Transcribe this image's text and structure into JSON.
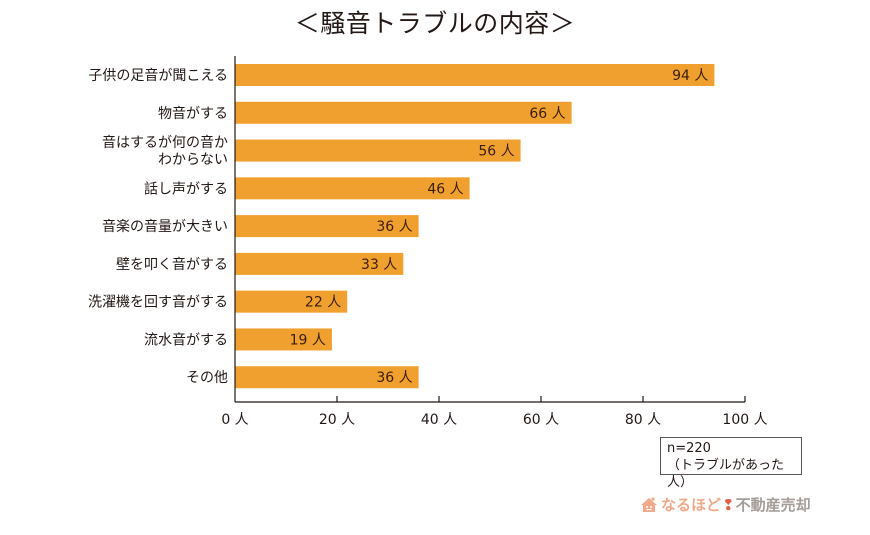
{
  "chart_data": {
    "type": "bar",
    "orientation": "horizontal",
    "title": "＜騒音トラブルの内容＞",
    "categories": [
      "子供の足音が聞こえる",
      "物音がする",
      "音はするが何の音か\nわからない",
      "話し声がする",
      "音楽の音量が大きい",
      "壁を叩く音がする",
      "洗濯機を回す音がする",
      "流水音がする",
      "その他"
    ],
    "values": [
      94,
      66,
      56,
      46,
      36,
      33,
      22,
      19,
      36
    ],
    "value_unit": "人",
    "value_labels": [
      "94 人",
      "66 人",
      "56 人",
      "46 人",
      "36 人",
      "33 人",
      "22 人",
      "19 人",
      "36 人"
    ],
    "xlim": [
      0,
      100
    ],
    "xticks": [
      0,
      20,
      40,
      60,
      80,
      100
    ],
    "xtick_labels": [
      "0 人",
      "20 人",
      "40 人",
      "60 人",
      "80 人",
      "100 人"
    ],
    "xlabel": "",
    "ylabel": "",
    "grid": false,
    "bar_color": "#f0a02e",
    "annotation": {
      "line1": "n=220",
      "line2": "（トラブルがあった人）"
    }
  },
  "branding": {
    "part1": "なるほど",
    "part2": "不動産売却",
    "icon": "house-icon"
  }
}
